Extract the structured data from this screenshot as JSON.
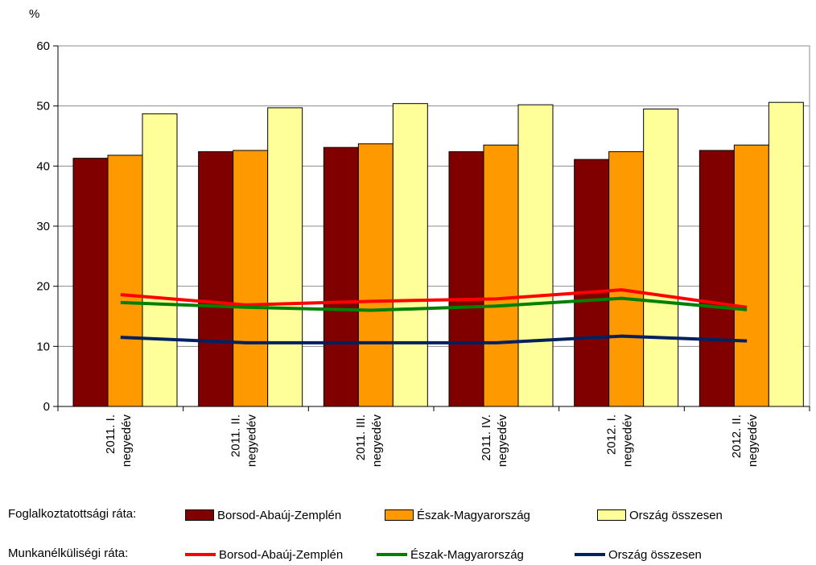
{
  "chart_data": {
    "type": "bar",
    "ylabel": "%",
    "ylim": [
      0,
      60
    ],
    "yticks": [
      0,
      10,
      20,
      30,
      40,
      50,
      60
    ],
    "grid": true,
    "categories": [
      [
        "2011. I.",
        "negyedév"
      ],
      [
        "2011. II.",
        "negyedév"
      ],
      [
        "2011. III.",
        "negyedév"
      ],
      [
        "2011. IV.",
        "negyedév"
      ],
      [
        "2012. I.",
        "negyedév"
      ],
      [
        "2012. II.",
        "negyedév"
      ]
    ],
    "bar_group_label": "Foglalkoztatottsági ráta:",
    "line_group_label": "Munkanélküliségi ráta:",
    "bar_series": [
      {
        "name": "Borsod-Abaúj-Zemplén",
        "color": "#800000",
        "values": [
          41.3,
          42.4,
          43.1,
          42.4,
          41.1,
          42.6
        ]
      },
      {
        "name": "Észak-Magyarország",
        "color": "#FF9900",
        "values": [
          41.8,
          42.6,
          43.7,
          43.5,
          42.4,
          43.5
        ]
      },
      {
        "name": "Ország összesen",
        "color": "#FFFF99",
        "values": [
          48.7,
          49.7,
          50.4,
          50.2,
          49.5,
          50.6
        ]
      }
    ],
    "line_series": [
      {
        "name": "Borsod-Abaúj-Zemplén",
        "color": "#FF0000",
        "values": [
          18.6,
          16.9,
          17.5,
          17.9,
          19.4,
          16.5
        ]
      },
      {
        "name": "Észak-Magyarország",
        "color": "#008000",
        "values": [
          17.3,
          16.5,
          16.0,
          16.7,
          18.0,
          16.1
        ]
      },
      {
        "name": "Ország összesen",
        "color": "#002060",
        "values": [
          11.5,
          10.6,
          10.6,
          10.6,
          11.7,
          10.9
        ]
      }
    ]
  }
}
